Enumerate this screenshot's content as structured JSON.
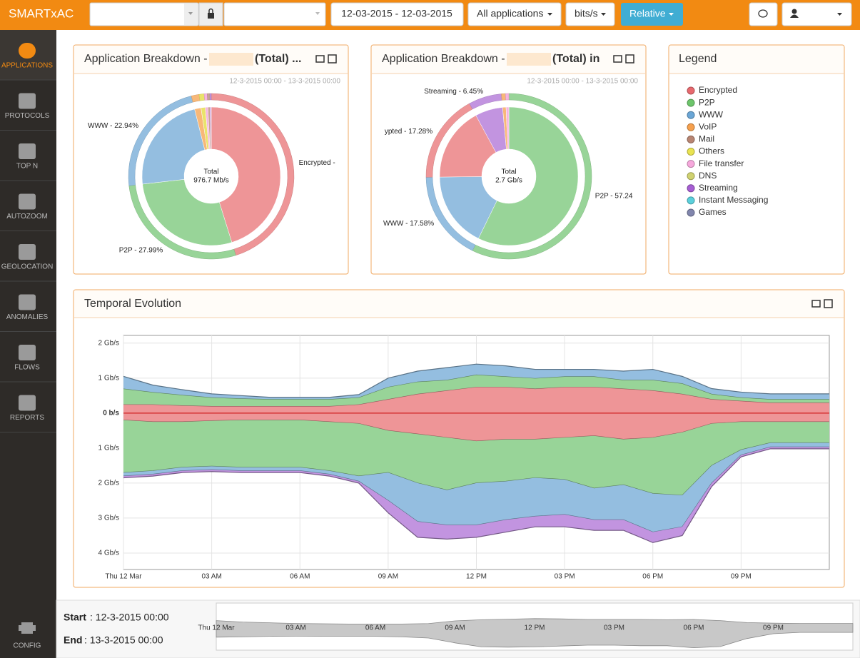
{
  "header": {
    "brand": "SMARTxAC",
    "date_range": "12-03-2015 - 12-03-2015",
    "applications": "All applications",
    "units": "bits/s",
    "mode": "Relative"
  },
  "sidebar": {
    "items": [
      "APPLICATIONS",
      "PROTOCOLS",
      "TOP N",
      "AUTOZOOM",
      "GEOLOCATION",
      "ANOMALIES",
      "FLOWS",
      "REPORTS"
    ],
    "config": "CONFIG"
  },
  "legend": {
    "title": "Legend",
    "items": [
      {
        "name": "Encrypted",
        "color": "#e8696e"
      },
      {
        "name": "P2P",
        "color": "#6dc56b"
      },
      {
        "name": "WWW",
        "color": "#6aa6d6"
      },
      {
        "name": "VoIP",
        "color": "#f6a04d"
      },
      {
        "name": "Mail",
        "color": "#b88572"
      },
      {
        "name": "Others",
        "color": "#e9e350"
      },
      {
        "name": "File transfer",
        "color": "#f6a8dc"
      },
      {
        "name": "DNS",
        "color": "#d0d270"
      },
      {
        "name": "Streaming",
        "color": "#a65ed3"
      },
      {
        "name": "Instant Messaging",
        "color": "#5bd0dc"
      },
      {
        "name": "Games",
        "color": "#8186ad"
      }
    ]
  },
  "chart_data": [
    {
      "type": "pie",
      "title": "Application Breakdown -",
      "title_suffix": "(Total) ...",
      "subtitle": "12-3-2015 00:00 - 13-3-2015 00:00",
      "center_label": "Total",
      "center_value": "976.7 Mb/s",
      "values": [
        45.2,
        27.99,
        22.94,
        1.5,
        1.0,
        0.6,
        0.5,
        0.27
      ],
      "value_labels": [
        "Encrypted - ",
        "P2P - 27.99%",
        "WWW - 22.94%",
        null,
        null,
        null,
        null,
        null
      ],
      "colors": [
        "#ee9597",
        "#98d498",
        "#94bee0",
        "#f8b878",
        "#eae36a",
        "#f6b4e0",
        "#c9a394",
        "#c294e0"
      ]
    },
    {
      "type": "pie",
      "title": "Application Breakdown -",
      "title_suffix": "(Total) in",
      "subtitle": "12-3-2015 00:00 - 13-3-2015 00:00",
      "center_label": "Total",
      "center_value": "2.7 Gb/s",
      "values": [
        57.24,
        17.58,
        17.28,
        6.45,
        0.8,
        0.65
      ],
      "value_labels": [
        "P2P - 57.24",
        "WWW - 17.58%",
        "ypted - 17.28%",
        "Streaming - 6.45%",
        null,
        null
      ],
      "colors": [
        "#98d498",
        "#94bee0",
        "#ee9597",
        "#c294e0",
        "#f8b878",
        "#f6b4e0"
      ]
    },
    {
      "type": "area",
      "title": "Temporal Evolution",
      "x": [
        0,
        1,
        2,
        3,
        4,
        5,
        6,
        7,
        8,
        9,
        10,
        11,
        12,
        13,
        14,
        15,
        16,
        17,
        18,
        19,
        20,
        21,
        22,
        23,
        24
      ],
      "xlim": [
        0,
        24
      ],
      "xticks": [
        {
          "value": 0,
          "label": "Thu 12 Mar"
        },
        {
          "value": 3,
          "label": "03 AM"
        },
        {
          "value": 6,
          "label": "06 AM"
        },
        {
          "value": 9,
          "label": "09 AM"
        },
        {
          "value": 12,
          "label": "12 PM"
        },
        {
          "value": 15,
          "label": "03 PM"
        },
        {
          "value": 18,
          "label": "06 PM"
        },
        {
          "value": 21,
          "label": "09 PM"
        }
      ],
      "ylim": [
        -4.47,
        2.22
      ],
      "yticks": [
        {
          "value": 2,
          "label": "2 Gb/s"
        },
        {
          "value": 1,
          "label": "1 Gb/s"
        },
        {
          "value": 0,
          "label": "0 b/s"
        },
        {
          "value": -1,
          "label": "1 Gb/s"
        },
        {
          "value": -2,
          "label": "2 Gb/s"
        },
        {
          "value": -3,
          "label": "3 Gb/s"
        },
        {
          "value": -4,
          "label": "4 Gb/s"
        }
      ],
      "grid": true,
      "series": [
        {
          "color": "#ee9597",
          "values": [
            0.25,
            0.25,
            0.22,
            0.2,
            0.2,
            0.2,
            0.2,
            0.2,
            0.25,
            0.4,
            0.55,
            0.65,
            0.75,
            0.75,
            0.7,
            0.75,
            0.75,
            0.7,
            0.65,
            0.55,
            0.4,
            0.35,
            0.3,
            0.3,
            0.3
          ]
        },
        {
          "color": "#98d498",
          "values": [
            0.45,
            0.35,
            0.3,
            0.25,
            0.22,
            0.2,
            0.2,
            0.2,
            0.2,
            0.35,
            0.35,
            0.3,
            0.35,
            0.3,
            0.3,
            0.3,
            0.3,
            0.25,
            0.3,
            0.3,
            0.15,
            0.1,
            0.1,
            0.1,
            0.1
          ]
        },
        {
          "color": "#94bee0",
          "values": [
            0.35,
            0.2,
            0.15,
            0.1,
            0.08,
            0.05,
            0.05,
            0.05,
            0.08,
            0.25,
            0.3,
            0.35,
            0.3,
            0.3,
            0.25,
            0.2,
            0.2,
            0.25,
            0.3,
            0.2,
            0.15,
            0.15,
            0.15,
            0.15,
            0.15
          ]
        },
        {
          "color": "#ee9597",
          "values": [
            -0.2,
            -0.25,
            -0.25,
            -0.22,
            -0.2,
            -0.2,
            -0.2,
            -0.25,
            -0.3,
            -0.5,
            -0.6,
            -0.7,
            -0.8,
            -0.75,
            -0.75,
            -0.7,
            -0.65,
            -0.75,
            -0.7,
            -0.55,
            -0.3,
            -0.25,
            -0.25,
            -0.25,
            -0.25
          ]
        },
        {
          "color": "#98d498",
          "values": [
            -1.5,
            -1.4,
            -1.3,
            -1.3,
            -1.35,
            -1.35,
            -1.35,
            -1.4,
            -1.5,
            -1.2,
            -1.4,
            -1.5,
            -1.2,
            -1.2,
            -1.1,
            -1.2,
            -1.5,
            -1.3,
            -1.6,
            -1.8,
            -1.2,
            -0.8,
            -0.6,
            -0.6,
            -0.6
          ]
        },
        {
          "color": "#94bee0",
          "values": [
            -0.1,
            -0.1,
            -0.1,
            -0.1,
            -0.1,
            -0.1,
            -0.1,
            -0.1,
            -0.15,
            -0.8,
            -1.1,
            -1.0,
            -1.2,
            -1.1,
            -1.1,
            -1.0,
            -0.9,
            -1.0,
            -1.1,
            -0.9,
            -0.5,
            -0.15,
            -0.12,
            -0.12,
            -0.12
          ]
        },
        {
          "color": "#c294e0",
          "values": [
            -0.05,
            -0.05,
            -0.05,
            -0.05,
            -0.05,
            -0.05,
            -0.05,
            -0.05,
            -0.05,
            -0.35,
            -0.45,
            -0.4,
            -0.35,
            -0.35,
            -0.3,
            -0.35,
            -0.3,
            -0.3,
            -0.3,
            -0.25,
            -0.1,
            -0.05,
            -0.05,
            -0.05,
            -0.05
          ]
        }
      ]
    }
  ],
  "range": {
    "start_label": "Start",
    "start_value": ": 12-3-2015 00:00",
    "end_label": "End",
    "end_value": ": 13-3-2015 00:00",
    "xticks": [
      {
        "value": 0,
        "label": "Thu 12 Mar"
      },
      {
        "value": 3,
        "label": "03 AM"
      },
      {
        "value": 6,
        "label": "06 AM"
      },
      {
        "value": 9,
        "label": "09 AM"
      },
      {
        "value": 12,
        "label": "12 PM"
      },
      {
        "value": 15,
        "label": "03 PM"
      },
      {
        "value": 18,
        "label": "06 PM"
      },
      {
        "value": 21,
        "label": "09 PM"
      }
    ]
  }
}
